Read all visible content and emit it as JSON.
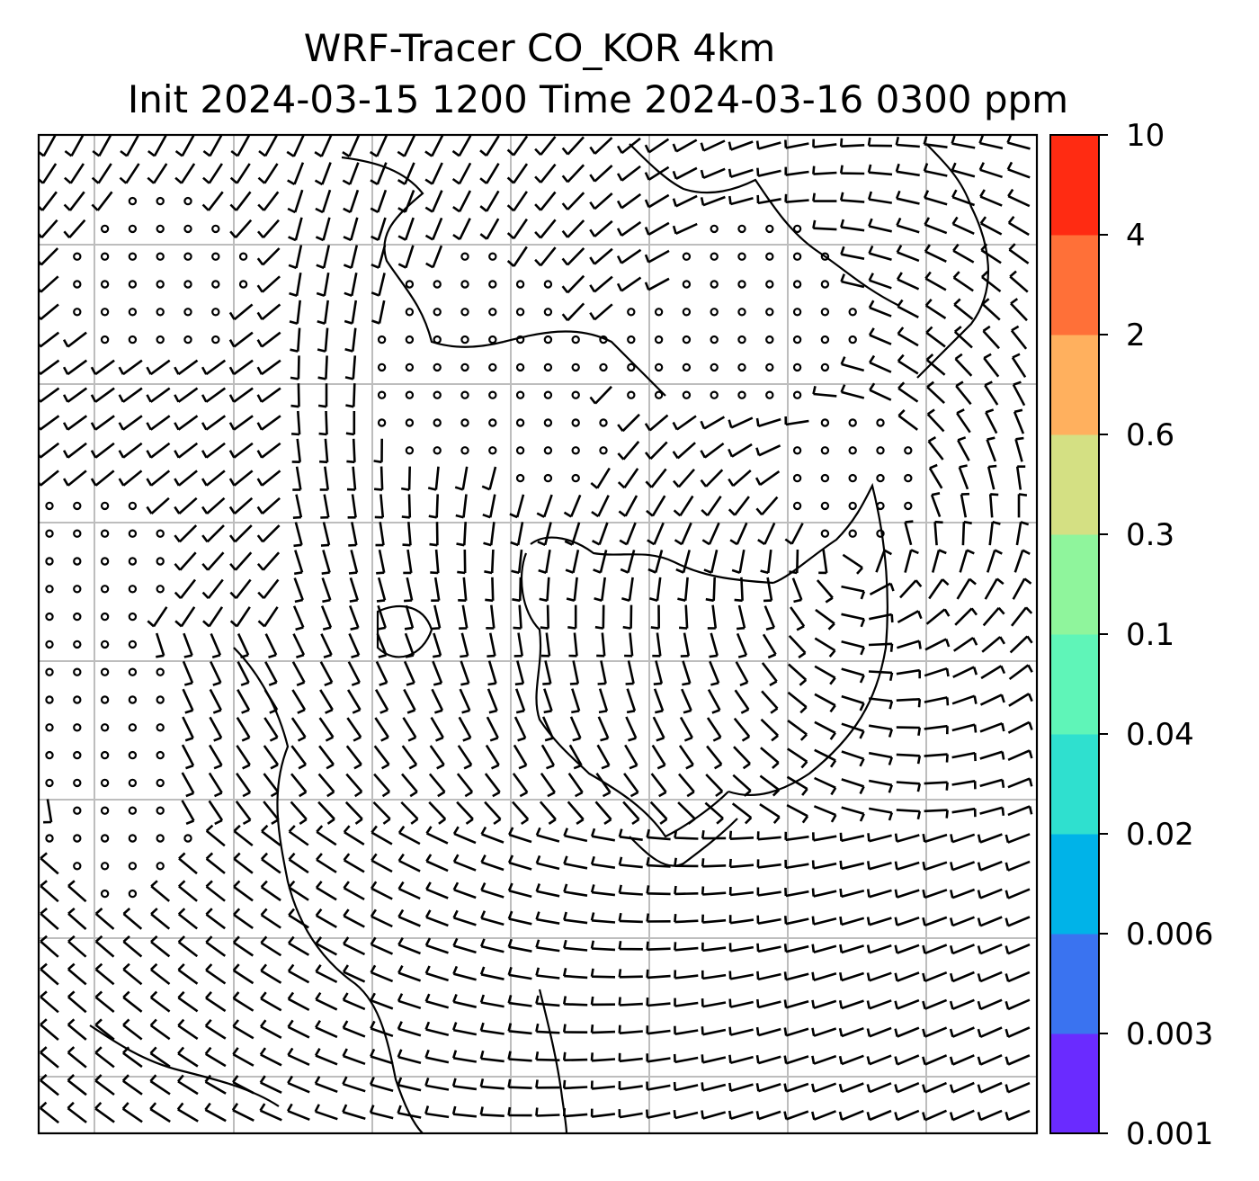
{
  "title": {
    "line1": "WRF-Tracer CO_KOR 4km",
    "line2": "Init 2024-03-15 1200 Time 2024-03-16 0300 ppm"
  },
  "colorbar": {
    "levels": [
      "0.001",
      "0.003",
      "0.006",
      "0.02",
      "0.04",
      "0.1",
      "0.3",
      "0.6",
      "2",
      "4",
      "10"
    ],
    "colors": [
      "#6a2bff",
      "#3a73f0",
      "#00b3e8",
      "#2fe0cf",
      "#5ff5b8",
      "#8ff59c",
      "#d4e083",
      "#ffb05e",
      "#ff7038",
      "#ff2b12"
    ]
  },
  "map": {
    "grid_lines": "on",
    "wind_barbs": "on",
    "coastlines": "on",
    "calm_symbol": "circle",
    "background": "#ffffff"
  }
}
